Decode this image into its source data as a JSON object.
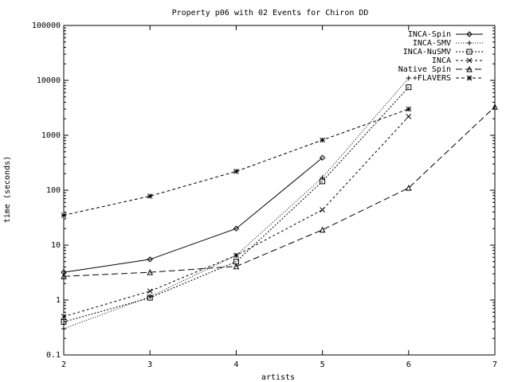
{
  "chart_data": {
    "type": "line",
    "title": "Property p06 with 02 Events for Chiron DD",
    "xlabel": "artists",
    "ylabel": "time (seconds)",
    "xlim": [
      2,
      7
    ],
    "ylim": [
      0.1,
      100000
    ],
    "yscale": "log",
    "xticks": [
      2,
      3,
      4,
      5,
      6,
      7
    ],
    "yticks": [
      {
        "v": 0.1,
        "label": "0.1"
      },
      {
        "v": 1,
        "label": "1"
      },
      {
        "v": 10,
        "label": "10"
      },
      {
        "v": 100,
        "label": "100"
      },
      {
        "v": 1000,
        "label": "1000"
      },
      {
        "v": 10000,
        "label": "10000"
      },
      {
        "v": 100000,
        "label": "100000"
      }
    ],
    "grid": false,
    "legend": "top-right",
    "series": [
      {
        "name": "INCA-Spin",
        "dash": "",
        "marker": "diamond",
        "points": [
          [
            2,
            3.2
          ],
          [
            3,
            5.5
          ],
          [
            4,
            20
          ],
          [
            5,
            390
          ]
        ]
      },
      {
        "name": "INCA-SMV",
        "dash": "1,2",
        "marker": "plus",
        "points": [
          [
            2,
            0.3
          ],
          [
            3,
            1.15
          ],
          [
            4,
            6.5
          ],
          [
            5,
            170
          ],
          [
            6,
            11000
          ]
        ]
      },
      {
        "name": "INCA-NuSMV",
        "dash": "2,2",
        "marker": "square",
        "points": [
          [
            2,
            0.4
          ],
          [
            3,
            1.1
          ],
          [
            4,
            5
          ],
          [
            5,
            145
          ],
          [
            6,
            7500
          ]
        ]
      },
      {
        "name": "INCA",
        "dash": "3,3",
        "marker": "cross",
        "points": [
          [
            2,
            0.5
          ],
          [
            3,
            1.45
          ],
          [
            4,
            6.5
          ],
          [
            5,
            44
          ],
          [
            6,
            2200
          ]
        ]
      },
      {
        "name": "Native Spin",
        "dash": "8,4",
        "marker": "triangle",
        "points": [
          [
            2,
            2.7
          ],
          [
            3,
            3.2
          ],
          [
            4,
            4.1
          ],
          [
            5,
            19
          ],
          [
            6,
            110
          ],
          [
            7,
            3300
          ]
        ]
      },
      {
        "name": "+FLAVERS",
        "dash": "4,3",
        "marker": "star",
        "points": [
          [
            2,
            35
          ],
          [
            3,
            78
          ],
          [
            4,
            220
          ],
          [
            5,
            820
          ],
          [
            6,
            3000
          ]
        ]
      }
    ]
  }
}
